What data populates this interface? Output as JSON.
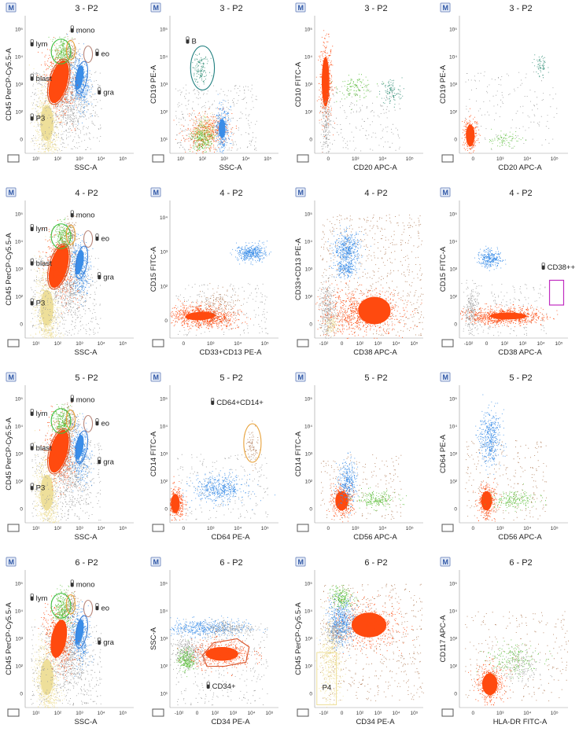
{
  "badge": "M",
  "colors": {
    "red": "#ff4a0f",
    "blue": "#3a8de8",
    "green": "#5bbf3a",
    "yellow": "#eedf9a",
    "grey": "#9a9a9a",
    "brown": "#b07a55",
    "teal": "#2b8a72",
    "orange_gate": "#e8a23a",
    "green_gate": "#3fbf3f",
    "blue_gate": "#3a7fd8",
    "mauve_gate": "#b8867a",
    "red_gate": "#d9542a",
    "magenta_gate": "#c02cc0",
    "teal_gate": "#1f7f7f"
  },
  "panels": [
    {
      "title": "3 - P2",
      "xlabel": "SSC-A",
      "ylabel": "CD45 PerCP-Cy5.5-A",
      "xaxis": "log",
      "yaxis": "cd45",
      "plot": "cd45ssc",
      "gates": [
        {
          "label": "lym"
        },
        {
          "label": "mono"
        },
        {
          "label": "eo"
        },
        {
          "label": "blast"
        },
        {
          "label": "gra"
        },
        {
          "label": "P3"
        }
      ]
    },
    {
      "title": "3 - P2",
      "xlabel": "SSC-A",
      "ylabel": "CD19 PE-A",
      "xaxis": "log",
      "yaxis": "log5",
      "plot": "cd19ssc",
      "gates": [
        {
          "label": "B"
        }
      ]
    },
    {
      "title": "3 - P2",
      "xlabel": "CD20 APC-A",
      "ylabel": "CD10 FITC-A",
      "xaxis": "bi",
      "yaxis": "bi5",
      "plot": "cd10cd20",
      "gates": []
    },
    {
      "title": "3 - P2",
      "xlabel": "CD20 APC-A",
      "ylabel": "CD19 PE-A",
      "xaxis": "bi",
      "yaxis": "bi5",
      "plot": "cd19cd20",
      "gates": []
    },
    {
      "title": "4 - P2",
      "xlabel": "SSC-A",
      "ylabel": "CD45 PerCP-Cy5.5-A",
      "xaxis": "log",
      "yaxis": "cd45",
      "plot": "cd45ssc",
      "gates": [
        {
          "label": "lym"
        },
        {
          "label": "mono"
        },
        {
          "label": "eo"
        },
        {
          "label": "blast"
        },
        {
          "label": "gra"
        },
        {
          "label": "P3"
        }
      ]
    },
    {
      "title": "4 - P2",
      "xlabel": "CD33+CD13 PE-A",
      "ylabel": "CD15 FITC-A",
      "xaxis": "bi",
      "yaxis": "bi4",
      "plot": "cd15cd33",
      "gates": []
    },
    {
      "title": "4 - P2",
      "xlabel": "CD38 APC-A",
      "ylabel": "CD33+CD13 PE-A",
      "xaxis": "bineg",
      "yaxis": "bi5",
      "plot": "cd33cd38",
      "gates": []
    },
    {
      "title": "4 - P2",
      "xlabel": "CD38 APC-A",
      "ylabel": "CD15 FITC-A",
      "xaxis": "bineg",
      "yaxis": "bi5",
      "plot": "cd15cd38",
      "gates": [
        {
          "label": "CD38++"
        }
      ]
    },
    {
      "title": "5 - P2",
      "xlabel": "SSC-A",
      "ylabel": "CD45 PerCP-Cy5.5-A",
      "xaxis": "log",
      "yaxis": "cd45",
      "plot": "cd45ssc",
      "gates": [
        {
          "label": "lym"
        },
        {
          "label": "mono"
        },
        {
          "label": "eo"
        },
        {
          "label": "blast"
        },
        {
          "label": "gra"
        },
        {
          "label": "P3"
        }
      ]
    },
    {
      "title": "5 - P2",
      "xlabel": "CD64 PE-A",
      "ylabel": "CD14 FITC-A",
      "xaxis": "bi",
      "yaxis": "bi5",
      "plot": "cd14cd64",
      "gates": [
        {
          "label": "CD64+CD14+"
        }
      ]
    },
    {
      "title": "5 - P2",
      "xlabel": "CD56 APC-A",
      "ylabel": "CD14 FITC-A",
      "xaxis": "bi",
      "yaxis": "bi5",
      "plot": "cd14cd56",
      "gates": []
    },
    {
      "title": "5 - P2",
      "xlabel": "CD56 APC-A",
      "ylabel": "CD64 PE-A",
      "xaxis": "bi",
      "yaxis": "bi5",
      "plot": "cd64cd56",
      "gates": []
    },
    {
      "title": "6 - P2",
      "xlabel": "SSC-A",
      "ylabel": "CD45 PerCP-Cy5.5-A",
      "xaxis": "log",
      "yaxis": "cd45",
      "plot": "cd45ssc6",
      "gates": [
        {
          "label": "lym"
        },
        {
          "label": "mono"
        },
        {
          "label": "eo"
        },
        {
          "label": "gra"
        }
      ]
    },
    {
      "title": "6 - P2",
      "xlabel": "CD34 PE-A",
      "ylabel": "SSC-A",
      "xaxis": "bineg",
      "yaxis": "log5",
      "plot": "ssccd34",
      "gates": [
        {
          "label": "CD34+"
        }
      ]
    },
    {
      "title": "6 - P2",
      "xlabel": "CD34 PE-A",
      "ylabel": "CD45 PerCP-Cy5.5-A",
      "xaxis": "bineg",
      "yaxis": "cd45",
      "plot": "cd45cd34",
      "gates": [
        {
          "label": "P4"
        }
      ]
    },
    {
      "title": "6 - P2",
      "xlabel": "HLA-DR FITC-A",
      "ylabel": "CD117 APC-A",
      "xaxis": "bi",
      "yaxis": "bi5",
      "plot": "cd117hla",
      "gates": []
    }
  ],
  "tick_sets": {
    "log": [
      "10¹",
      "10²",
      "10³",
      "10⁴",
      "10⁵"
    ],
    "log5": [
      "10¹",
      "10²",
      "10³",
      "10⁴",
      "10⁵"
    ],
    "cd45": [
      "0",
      "10²",
      "10³",
      "10⁴",
      "10⁵"
    ],
    "bi": [
      "0",
      "10³",
      "10⁴",
      "10⁵"
    ],
    "bineg": [
      "-10²",
      "0",
      "10²",
      "10³",
      "10⁴",
      "10⁵"
    ],
    "bi5": [
      "0",
      "10²",
      "10³",
      "10⁴",
      "10⁵"
    ],
    "bi4": [
      "0",
      "10²",
      "10³",
      "10⁴"
    ]
  }
}
